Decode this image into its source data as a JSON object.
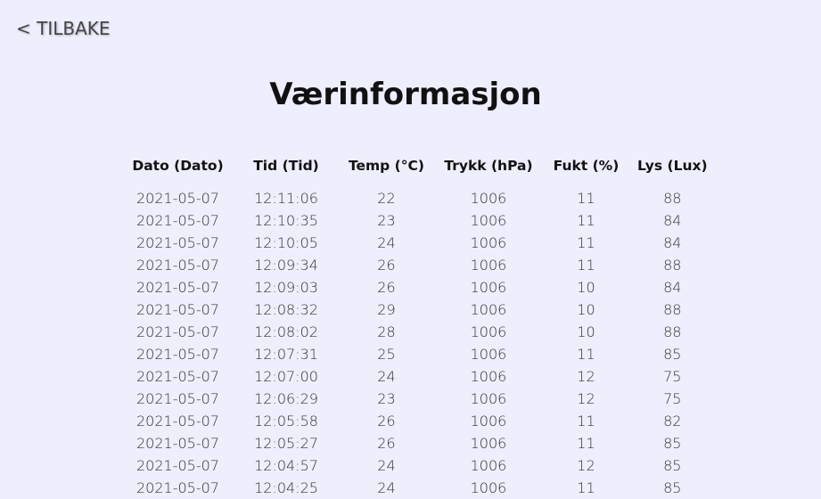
{
  "nav": {
    "back_label": "< TILBAKE"
  },
  "page": {
    "title": "Værinformasjon"
  },
  "table": {
    "headers": [
      "Dato (Dato)",
      "Tid (Tid)",
      "Temp (°C)",
      "Trykk (hPa)",
      "Fukt (%)",
      "Lys (Lux)"
    ],
    "rows": [
      [
        "2021-05-07",
        "12:11:06",
        "22",
        "1006",
        "11",
        "88"
      ],
      [
        "2021-05-07",
        "12:10:35",
        "23",
        "1006",
        "11",
        "84"
      ],
      [
        "2021-05-07",
        "12:10:05",
        "24",
        "1006",
        "11",
        "84"
      ],
      [
        "2021-05-07",
        "12:09:34",
        "26",
        "1006",
        "11",
        "88"
      ],
      [
        "2021-05-07",
        "12:09:03",
        "26",
        "1006",
        "10",
        "84"
      ],
      [
        "2021-05-07",
        "12:08:32",
        "29",
        "1006",
        "10",
        "88"
      ],
      [
        "2021-05-07",
        "12:08:02",
        "28",
        "1006",
        "10",
        "88"
      ],
      [
        "2021-05-07",
        "12:07:31",
        "25",
        "1006",
        "11",
        "85"
      ],
      [
        "2021-05-07",
        "12:07:00",
        "24",
        "1006",
        "12",
        "75"
      ],
      [
        "2021-05-07",
        "12:06:29",
        "23",
        "1006",
        "12",
        "75"
      ],
      [
        "2021-05-07",
        "12:05:58",
        "26",
        "1006",
        "11",
        "82"
      ],
      [
        "2021-05-07",
        "12:05:27",
        "26",
        "1006",
        "11",
        "85"
      ],
      [
        "2021-05-07",
        "12:04:57",
        "24",
        "1006",
        "12",
        "85"
      ],
      [
        "2021-05-07",
        "12:04:25",
        "24",
        "1006",
        "11",
        "85"
      ]
    ]
  }
}
